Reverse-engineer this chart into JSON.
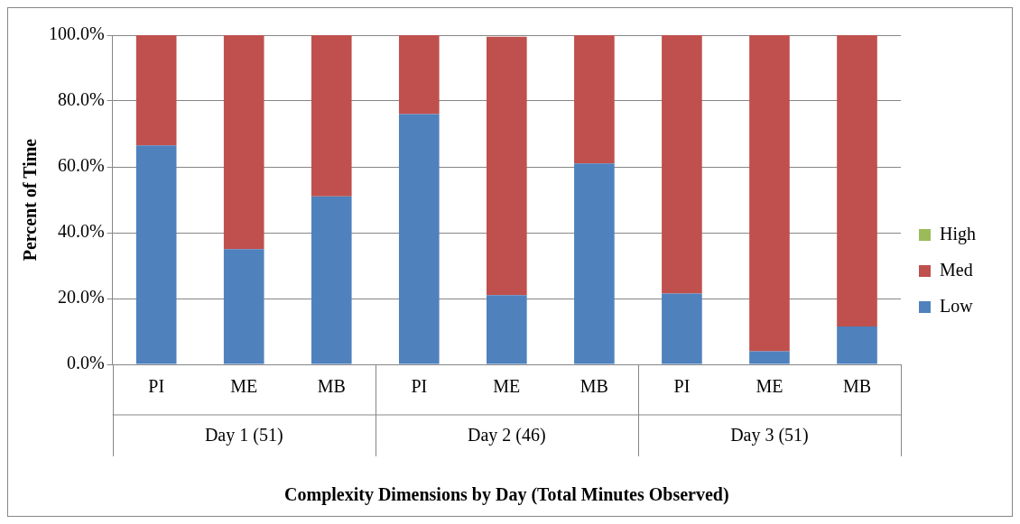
{
  "chart_data": {
    "type": "bar",
    "stacked": true,
    "xlabel": "Complexity Dimensions by Day (Total Minutes Observed)",
    "ylabel": "Percent of Time",
    "categories": [
      "PI",
      "ME",
      "MB",
      "PI",
      "ME",
      "MB",
      "PI",
      "ME",
      "MB"
    ],
    "annotations": [
      "Day 1 (51)",
      "Day 2 (46)",
      "Day 3 (51)"
    ],
    "series": [
      {
        "name": "Low",
        "color": "#4f81bd",
        "values": [
          66.5,
          35,
          51,
          76,
          21,
          61,
          21.5,
          4,
          11.5
        ]
      },
      {
        "name": "Med",
        "color": "#c0504d",
        "values": [
          33.5,
          65,
          49,
          24,
          78.5,
          39,
          78.5,
          96,
          88.5
        ]
      },
      {
        "name": "High",
        "color": "#9bbb59",
        "values": [
          0,
          0,
          0,
          0,
          0,
          0,
          0,
          0,
          0
        ]
      }
    ],
    "ylim": [
      0,
      100
    ],
    "yticks": [
      {
        "value": 0,
        "label": "0.0%"
      },
      {
        "value": 20,
        "label": "20.0%"
      },
      {
        "value": 40,
        "label": "40.0%"
      },
      {
        "value": 60,
        "label": "60.0%"
      },
      {
        "value": 80,
        "label": "80.0%"
      },
      {
        "value": 100,
        "label": "100.0%"
      }
    ],
    "grid": "y",
    "legend": "right"
  }
}
